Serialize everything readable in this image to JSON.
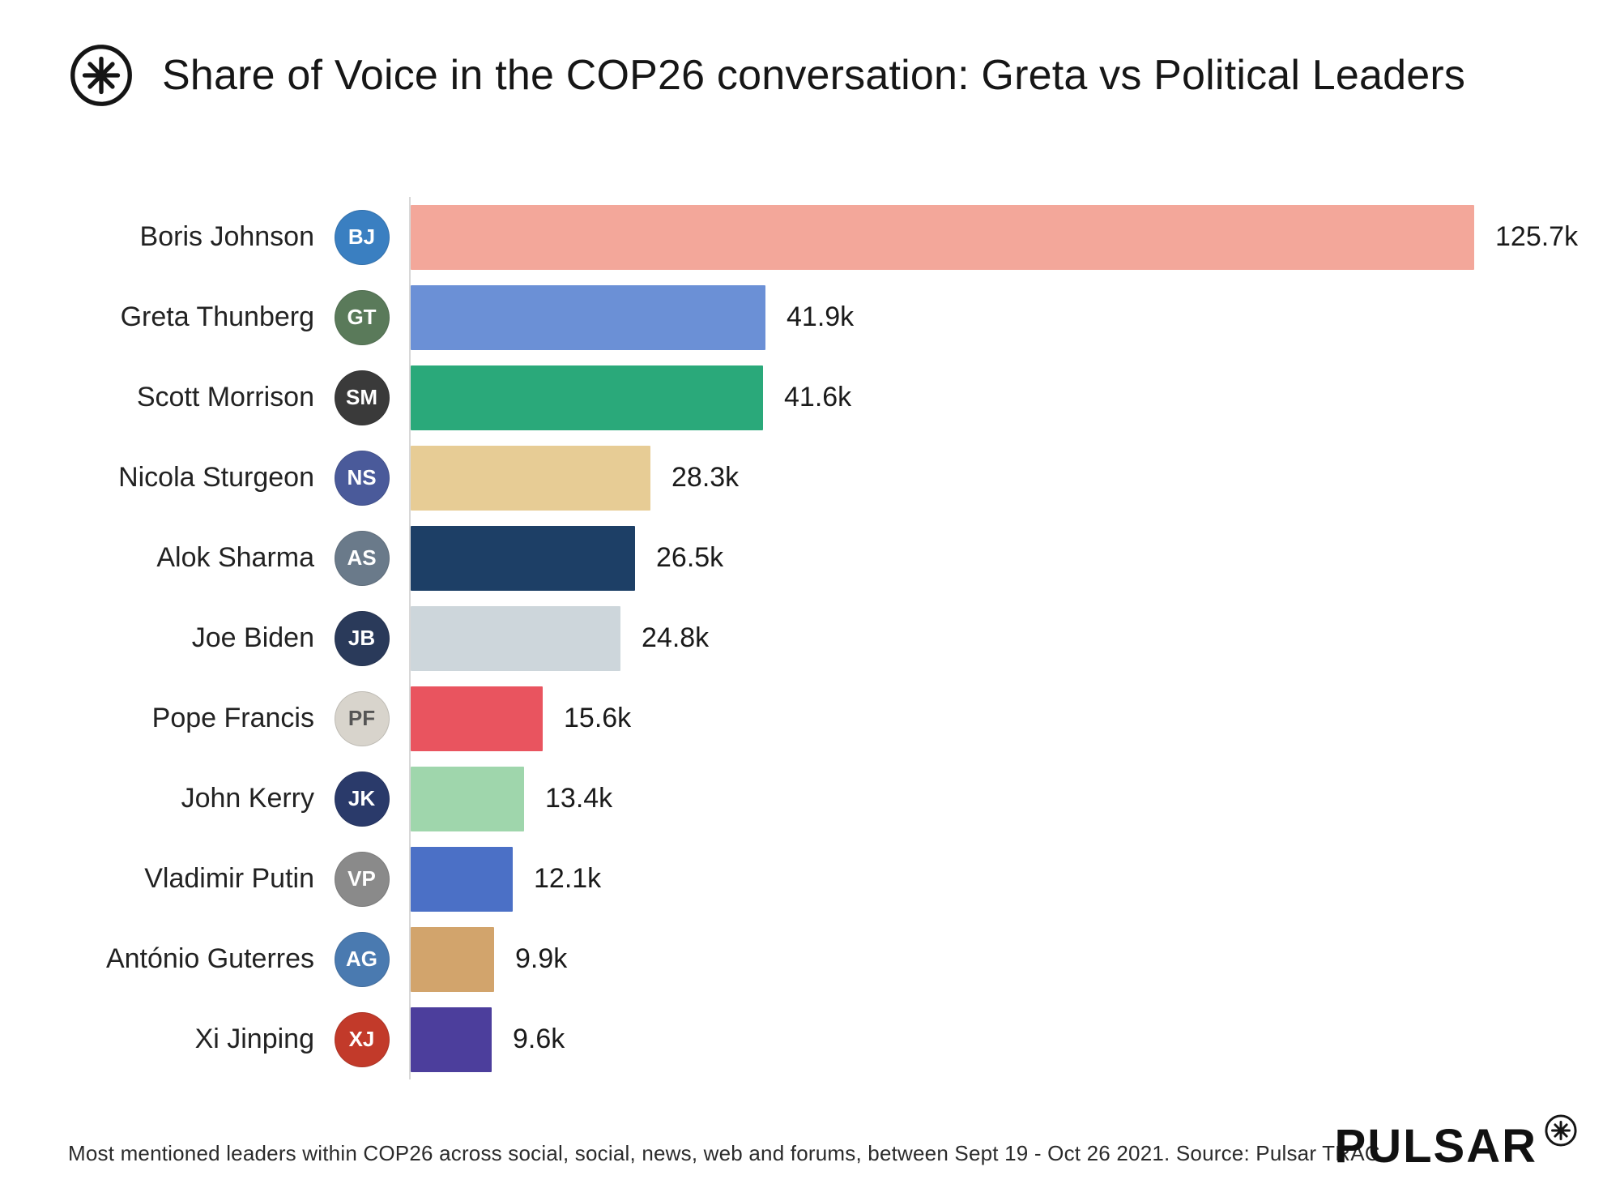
{
  "header": {
    "title": "Share of Voice in the COP26 conversation: Greta vs Political Leaders",
    "logo": "pulsar-asterisk-in-circle"
  },
  "chart_data": {
    "type": "bar",
    "orientation": "horizontal",
    "title": "Share of Voice in the COP26 conversation: Greta vs Political Leaders",
    "xlabel": "",
    "ylabel": "",
    "unit": "k (thousands of mentions)",
    "xlim": [
      0,
      130
    ],
    "grid": false,
    "legend": false,
    "categories": [
      "Boris Johnson",
      "Greta Thunberg",
      "Scott Morrison",
      "Nicola Sturgeon",
      "Alok Sharma",
      "Joe Biden",
      "Pope Francis",
      "John Kerry",
      "Vladimir Putin",
      "António Guterres",
      "Xi Jinping"
    ],
    "values": [
      125.7,
      41.9,
      41.6,
      28.3,
      26.5,
      24.8,
      15.6,
      13.4,
      12.1,
      9.9,
      9.6
    ],
    "bars": [
      {
        "name": "Boris Johnson",
        "value": 125.7,
        "label": "125.7k",
        "color": "#F3A79A",
        "avatar_bg": "#3a7fc1",
        "avatar_text": "#ffffff",
        "initials": "BJ"
      },
      {
        "name": "Greta Thunberg",
        "value": 41.9,
        "label": "41.9k",
        "color": "#6B90D6",
        "avatar_bg": "#5a7a5a",
        "avatar_text": "#ffffff",
        "initials": "GT"
      },
      {
        "name": "Scott Morrison",
        "value": 41.6,
        "label": "41.6k",
        "color": "#2AA97A",
        "avatar_bg": "#3a3a3a",
        "avatar_text": "#ffffff",
        "initials": "SM"
      },
      {
        "name": "Nicola Sturgeon",
        "value": 28.3,
        "label": "28.3k",
        "color": "#E7CC95",
        "avatar_bg": "#4a5a9a",
        "avatar_text": "#ffffff",
        "initials": "NS"
      },
      {
        "name": "Alok Sharma",
        "value": 26.5,
        "label": "26.5k",
        "color": "#1D3F66",
        "avatar_bg": "#6a7a8a",
        "avatar_text": "#ffffff",
        "initials": "AS"
      },
      {
        "name": "Joe Biden",
        "value": 24.8,
        "label": "24.8k",
        "color": "#CDD6DB",
        "avatar_bg": "#2a3a5a",
        "avatar_text": "#ffffff",
        "initials": "JB"
      },
      {
        "name": "Pope Francis",
        "value": 15.6,
        "label": "15.6k",
        "color": "#E9545F",
        "avatar_bg": "#d8d4cc",
        "avatar_text": "#555555",
        "initials": "PF"
      },
      {
        "name": "John Kerry",
        "value": 13.4,
        "label": "13.4k",
        "color": "#9FD6AC",
        "avatar_bg": "#2a3a6a",
        "avatar_text": "#ffffff",
        "initials": "JK"
      },
      {
        "name": "Vladimir Putin",
        "value": 12.1,
        "label": "12.1k",
        "color": "#4B70C6",
        "avatar_bg": "#8a8a8a",
        "avatar_text": "#ffffff",
        "initials": "VP"
      },
      {
        "name": "António Guterres",
        "value": 9.9,
        "label": "9.9k",
        "color": "#D2A46C",
        "avatar_bg": "#4a7ab0",
        "avatar_text": "#ffffff",
        "initials": "AG"
      },
      {
        "name": "Xi Jinping",
        "value": 9.6,
        "label": "9.6k",
        "color": "#4C3E9C",
        "avatar_bg": "#c23a2a",
        "avatar_text": "#ffffff",
        "initials": "XJ"
      }
    ]
  },
  "footer": {
    "caption": "Most mentioned leaders within COP26 across social, social, news, web and forums, between Sept 19 - Oct 26 2021. Source: Pulsar TRAC",
    "brand": "PULSAR"
  }
}
